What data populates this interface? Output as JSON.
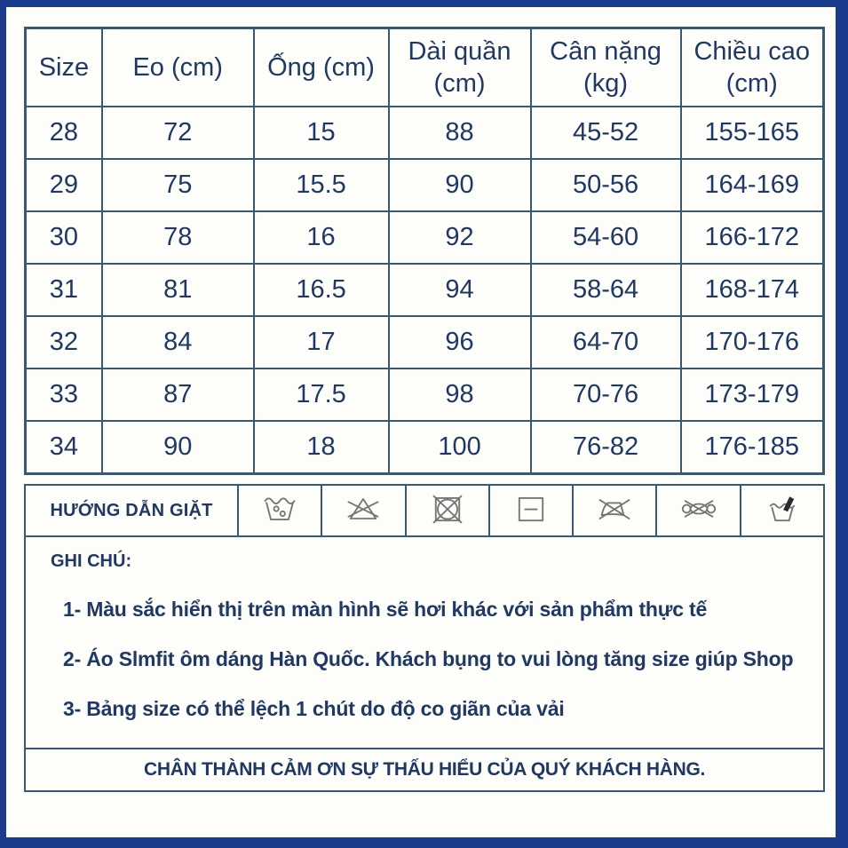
{
  "colors": {
    "frame_border": "#1b3b8c",
    "table_border": "#3a5777",
    "text": "#1f3864",
    "icon_stroke": "#757575"
  },
  "size_table": {
    "headers": [
      [
        "Size"
      ],
      [
        "Eo (cm)"
      ],
      [
        "Ống (cm)"
      ],
      [
        "Dài quần",
        "(cm)"
      ],
      [
        "Cân nặng",
        "(kg)"
      ],
      [
        "Chiều cao",
        "(cm)"
      ]
    ],
    "rows": [
      [
        "28",
        "72",
        "15",
        "88",
        "45-52",
        "155-165"
      ],
      [
        "29",
        "75",
        "15.5",
        "90",
        "50-56",
        "164-169"
      ],
      [
        "30",
        "78",
        "16",
        "92",
        "54-60",
        "166-172"
      ],
      [
        "31",
        "81",
        "16.5",
        "94",
        "58-64",
        "168-174"
      ],
      [
        "32",
        "84",
        "17",
        "96",
        "64-70",
        "170-176"
      ],
      [
        "33",
        "87",
        "17.5",
        "98",
        "70-76",
        "173-179"
      ],
      [
        "34",
        "90",
        "18",
        "100",
        "76-82",
        "176-185"
      ]
    ]
  },
  "care": {
    "label": "HƯỚNG DẪN GIẶT",
    "icons": [
      "wash-tub-icon",
      "do-not-bleach-icon",
      "do-not-tumble-dry-icon",
      "dry-flat-icon",
      "do-not-iron-icon",
      "do-not-wring-icon",
      "hand-wash-icon"
    ]
  },
  "notes": {
    "title": "GHI CHÚ:",
    "items": [
      "1- Màu sắc hiển thị trên màn hình sẽ hơi khác với sản phẩm thực tế",
      "2- Áo Slmfit ôm dáng Hàn Quốc. Khách bụng to vui lòng tăng size giúp Shop",
      "3- Bảng size có thể lệch 1 chút do độ co giãn của vải"
    ]
  },
  "footer": {
    "thanks": "CHÂN THÀNH CẢM ƠN SỰ THẤU HIỂU CỦA QUÝ KHÁCH HÀNG."
  }
}
